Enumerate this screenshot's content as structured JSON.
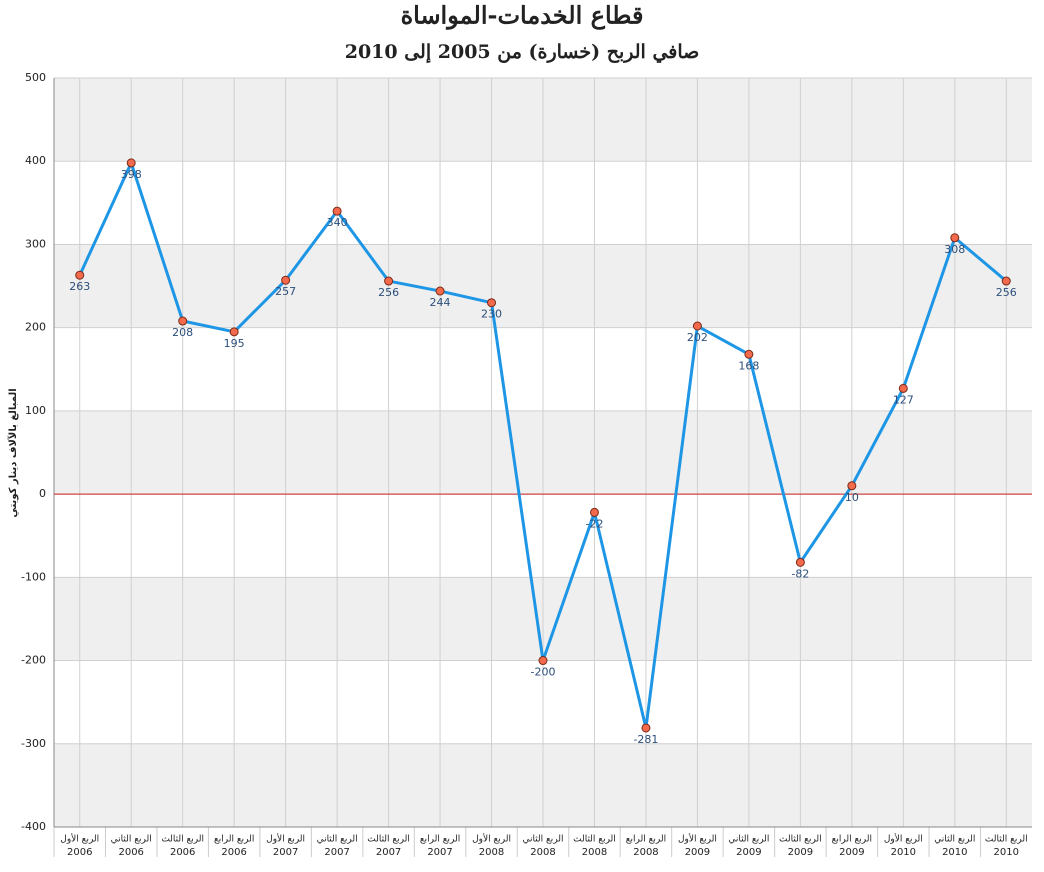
{
  "chart_data": {
    "type": "line",
    "title": "قطاع الخدمات-المواساة",
    "subtitle": "صافي الربح (خسارة) من 2005 إلى 2010",
    "y_label": "المبالغ بالآلاف دينار كويتي",
    "categories": [
      [
        "الربع الأول",
        "2006"
      ],
      [
        "الربع الثاني",
        "2006"
      ],
      [
        "الربع الثالث",
        "2006"
      ],
      [
        "الربع الرابع",
        "2006"
      ],
      [
        "الربع الأول",
        "2007"
      ],
      [
        "الربع الثاني",
        "2007"
      ],
      [
        "الربع الثالث",
        "2007"
      ],
      [
        "الربع الرابع",
        "2007"
      ],
      [
        "الربع الأول",
        "2008"
      ],
      [
        "الربع الثاني",
        "2008"
      ],
      [
        "الربع الثالث",
        "2008"
      ],
      [
        "الربع الرابع",
        "2008"
      ],
      [
        "الربع الأول",
        "2009"
      ],
      [
        "الربع الثاني",
        "2009"
      ],
      [
        "الربع الثالث",
        "2009"
      ],
      [
        "الربع الرابع",
        "2009"
      ],
      [
        "الربع الأول",
        "2010"
      ],
      [
        "الربع الثاني",
        "2010"
      ],
      [
        "الربع الثالث",
        "2010"
      ]
    ],
    "values": [
      263,
      398,
      208,
      195,
      257,
      340,
      256,
      244,
      230,
      -200,
      -22,
      -281,
      202,
      168,
      -82,
      10,
      127,
      308,
      256
    ],
    "color": "#1e96e6",
    "marker_color": "#f26a4b",
    "zero_line_color": "#cc2222",
    "ylim": [
      -400,
      500
    ],
    "yticks": [
      -400,
      -300,
      -200,
      -100,
      0,
      100,
      200,
      300,
      400,
      500
    ],
    "grid": true
  }
}
